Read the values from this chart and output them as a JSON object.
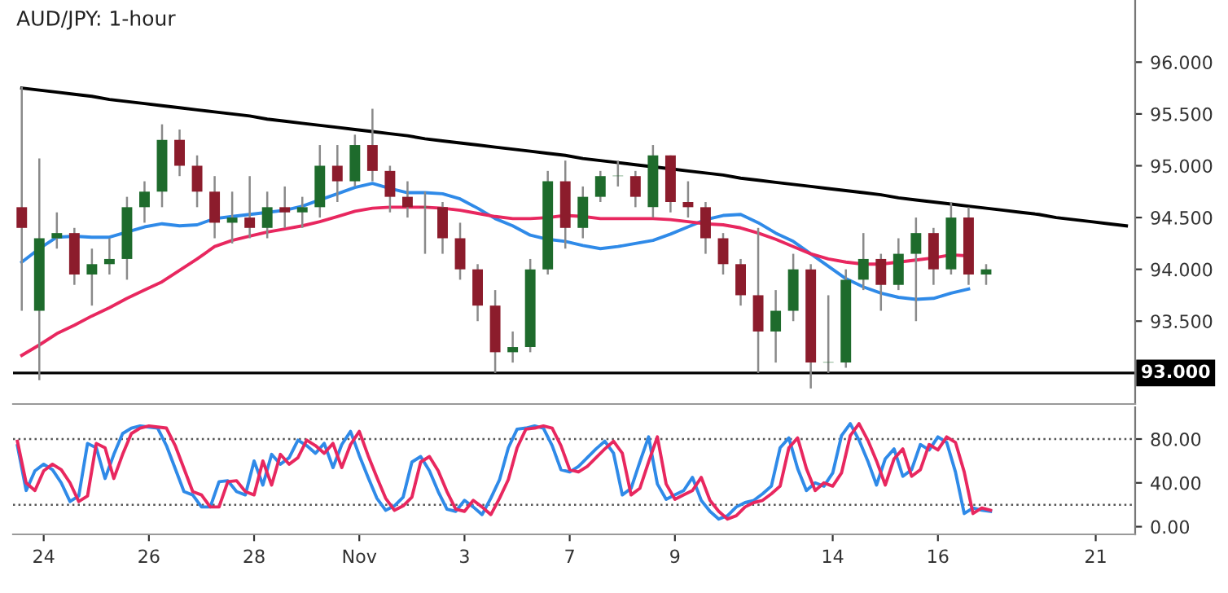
{
  "chart_data": [
    {
      "type": "candlestick",
      "title": "AUD/JPY: 1-hour",
      "tick_labels": "y",
      "categories": [
        null,
        null,
        null,
        null,
        null,
        null,
        null,
        null,
        null,
        null,
        null,
        null,
        null,
        null,
        null,
        null,
        null,
        null,
        null,
        null,
        null,
        null,
        null,
        null,
        null,
        null,
        null,
        null,
        null,
        null,
        null,
        null,
        null,
        null,
        null,
        null,
        null,
        null,
        null,
        null,
        null,
        null,
        null,
        null,
        null,
        null,
        null,
        null,
        null,
        null,
        null,
        null,
        null,
        null,
        null,
        null,
        null,
        null,
        null,
        null,
        null,
        null,
        null,
        null
      ],
      "ohlc": [
        [
          94.6,
          95.76,
          93.6,
          94.4
        ],
        [
          93.6,
          95.07,
          92.93,
          94.3
        ],
        [
          94.3,
          94.55,
          94.2,
          94.35
        ],
        [
          94.35,
          94.4,
          93.85,
          93.95
        ],
        [
          93.95,
          94.2,
          93.65,
          94.05
        ],
        [
          94.05,
          94.3,
          93.95,
          94.1
        ],
        [
          94.1,
          94.7,
          93.9,
          94.6
        ],
        [
          94.6,
          94.85,
          94.45,
          94.75
        ],
        [
          94.75,
          95.4,
          94.6,
          95.25
        ],
        [
          95.25,
          95.35,
          94.9,
          95.0
        ],
        [
          95.0,
          95.1,
          94.6,
          94.75
        ],
        [
          94.75,
          94.9,
          94.3,
          94.45
        ],
        [
          94.45,
          94.75,
          94.25,
          94.5
        ],
        [
          94.5,
          94.9,
          94.3,
          94.4
        ],
        [
          94.4,
          94.75,
          94.3,
          94.6
        ],
        [
          94.6,
          94.8,
          94.4,
          94.55
        ],
        [
          94.55,
          94.7,
          94.4,
          94.6
        ],
        [
          94.6,
          95.2,
          94.5,
          95.0
        ],
        [
          95.0,
          95.2,
          94.65,
          94.85
        ],
        [
          94.85,
          95.3,
          94.8,
          95.2
        ],
        [
          95.2,
          95.55,
          94.85,
          94.95
        ],
        [
          94.95,
          95.0,
          94.55,
          94.7
        ],
        [
          94.7,
          94.85,
          94.5,
          94.6
        ],
        [
          94.6,
          94.75,
          94.15,
          94.6
        ],
        [
          94.6,
          94.65,
          94.15,
          94.3
        ],
        [
          94.3,
          94.45,
          93.9,
          94.0
        ],
        [
          94.0,
          94.05,
          93.5,
          93.65
        ],
        [
          93.65,
          93.8,
          93.0,
          93.2
        ],
        [
          93.2,
          93.4,
          93.1,
          93.25
        ],
        [
          93.25,
          94.1,
          93.2,
          94.0
        ],
        [
          94.0,
          94.95,
          93.95,
          94.85
        ],
        [
          94.85,
          95.05,
          94.2,
          94.4
        ],
        [
          94.4,
          94.8,
          94.3,
          94.7
        ],
        [
          94.7,
          94.95,
          94.65,
          94.9
        ],
        [
          94.9,
          95.05,
          94.8,
          94.9
        ],
        [
          94.9,
          94.95,
          94.6,
          94.7
        ],
        [
          94.6,
          95.2,
          94.5,
          95.1
        ],
        [
          95.1,
          95.1,
          94.55,
          94.65
        ],
        [
          94.65,
          94.85,
          94.5,
          94.6
        ],
        [
          94.6,
          94.65,
          94.15,
          94.3
        ],
        [
          94.3,
          94.35,
          93.95,
          94.05
        ],
        [
          94.05,
          94.1,
          93.65,
          93.75
        ],
        [
          93.75,
          94.4,
          93.0,
          93.4
        ],
        [
          93.4,
          93.8,
          93.1,
          93.6
        ],
        [
          93.6,
          94.15,
          93.5,
          94.0
        ],
        [
          94.0,
          94.05,
          92.85,
          93.1
        ],
        [
          93.1,
          93.75,
          93.0,
          93.1
        ],
        [
          93.1,
          94.0,
          93.05,
          93.9
        ],
        [
          93.9,
          94.35,
          93.8,
          94.1
        ],
        [
          94.1,
          94.15,
          93.6,
          93.85
        ],
        [
          93.85,
          94.3,
          93.8,
          94.15
        ],
        [
          94.15,
          94.5,
          93.5,
          94.35
        ],
        [
          94.35,
          94.4,
          93.85,
          94.0
        ],
        [
          94.0,
          94.65,
          93.95,
          94.5
        ],
        [
          94.5,
          94.6,
          93.85,
          93.95
        ],
        [
          93.95,
          94.05,
          93.85,
          94.0
        ],
        null,
        null,
        null,
        null,
        null,
        null,
        null,
        null
      ],
      "series": [
        {
          "type": "line",
          "color": "#2f8ae8",
          "values": [
            94.07,
            94.2,
            94.31,
            94.32,
            94.31,
            94.31,
            94.36,
            94.41,
            94.44,
            94.42,
            94.43,
            94.49,
            94.51,
            94.53,
            94.55,
            94.57,
            94.61,
            94.67,
            94.73,
            94.79,
            94.83,
            94.78,
            94.74,
            94.74,
            94.73,
            94.68,
            94.59,
            94.49,
            94.42,
            94.33,
            94.29,
            94.27,
            94.23,
            94.2,
            94.22,
            94.25,
            94.28,
            94.34,
            94.41,
            94.48,
            94.52,
            94.53,
            94.45,
            94.35,
            94.27,
            94.15,
            94.03,
            93.91,
            93.83,
            93.77,
            93.73,
            93.71,
            93.72,
            93.77,
            93.81,
            null,
            null,
            null,
            null,
            null,
            null,
            null,
            null,
            null
          ]
        },
        {
          "type": "line",
          "color": "#e8275f",
          "values": [
            93.17,
            93.27,
            93.38,
            93.46,
            93.55,
            93.63,
            93.72,
            93.8,
            93.88,
            93.99,
            94.1,
            94.22,
            94.28,
            94.32,
            94.36,
            94.39,
            94.42,
            94.46,
            94.51,
            94.56,
            94.59,
            94.6,
            94.6,
            94.6,
            94.59,
            94.57,
            94.54,
            94.51,
            94.49,
            94.49,
            94.5,
            94.52,
            94.51,
            94.49,
            94.49,
            94.49,
            94.49,
            94.48,
            94.46,
            94.44,
            94.43,
            94.4,
            94.35,
            94.29,
            94.22,
            94.15,
            94.1,
            94.07,
            94.05,
            94.05,
            94.07,
            94.09,
            94.11,
            94.14,
            94.13,
            null,
            null,
            null,
            null,
            null,
            null,
            null,
            null,
            null
          ]
        },
        {
          "type": "line",
          "color": "#000000",
          "values": [
            95.75,
            95.73,
            95.71,
            95.69,
            95.67,
            95.64,
            95.62,
            95.6,
            95.58,
            95.56,
            95.54,
            95.52,
            95.5,
            95.48,
            95.45,
            95.43,
            95.41,
            95.39,
            95.37,
            95.35,
            95.33,
            95.31,
            95.29,
            95.26,
            95.24,
            95.22,
            95.2,
            95.18,
            95.16,
            95.14,
            95.12,
            95.1,
            95.07,
            95.05,
            95.03,
            95.01,
            94.99,
            94.97,
            94.95,
            94.93,
            94.91,
            94.88,
            94.86,
            94.84,
            94.82,
            94.8,
            94.78,
            94.76,
            94.74,
            94.72,
            94.69,
            94.67,
            94.65,
            94.63,
            94.61,
            94.59,
            94.57,
            94.55,
            94.53,
            94.5,
            94.48,
            94.46,
            94.44,
            94.42
          ]
        }
      ],
      "ylim": [
        92.7,
        96.6
      ],
      "yticks": [
        {
          "value": 93.5,
          "label": "93.500"
        },
        {
          "value": 94,
          "label": "94.000"
        },
        {
          "value": 94.5,
          "label": "94.500"
        },
        {
          "value": 95,
          "label": "95.000"
        },
        {
          "value": 95.5,
          "label": "95.500"
        },
        {
          "value": 96,
          "label": "96.000"
        }
      ],
      "ref_lines": [
        {
          "axis": "y",
          "value": 93,
          "label": "93.000",
          "color": "#000000",
          "line_style": "solid"
        }
      ]
    },
    {
      "type": "line",
      "line_style": "solid",
      "categories": [
        null,
        null,
        null,
        "24",
        null,
        null,
        null,
        null,
        null,
        null,
        null,
        null,
        null,
        null,
        null,
        "26",
        null,
        null,
        null,
        null,
        null,
        null,
        null,
        null,
        null,
        null,
        null,
        "28",
        null,
        null,
        null,
        null,
        null,
        null,
        null,
        null,
        null,
        null,
        null,
        "Nov",
        null,
        null,
        null,
        null,
        null,
        null,
        null,
        null,
        null,
        null,
        null,
        "3",
        null,
        null,
        null,
        null,
        null,
        null,
        null,
        null,
        null,
        null,
        null,
        "7",
        null,
        null,
        null,
        null,
        null,
        null,
        null,
        null,
        null,
        null,
        null,
        "9",
        null,
        null,
        null,
        null,
        null,
        null,
        null,
        null,
        null,
        null,
        null,
        null,
        null,
        null,
        null,
        null,
        null,
        "14",
        null,
        null,
        null,
        null,
        null,
        null,
        null,
        null,
        null,
        null,
        null,
        "16",
        null,
        null,
        null,
        null,
        null,
        null,
        null,
        null,
        null,
        null,
        null,
        null,
        null,
        null,
        null,
        null,
        null,
        "21",
        null,
        null,
        null,
        null
      ],
      "series": [
        {
          "color": "#2f8ae8",
          "values": [
            74,
            33,
            51,
            57,
            52,
            40,
            23,
            28,
            76,
            72,
            44,
            66,
            85,
            90,
            92,
            91,
            90,
            74,
            53,
            32,
            29,
            18,
            18,
            41,
            42,
            32,
            29,
            60,
            38,
            66,
            57,
            63,
            79,
            74,
            67,
            76,
            54,
            75,
            87,
            65,
            45,
            26,
            15,
            19,
            27,
            59,
            64,
            51,
            32,
            16,
            14,
            24,
            18,
            11,
            26,
            43,
            72,
            89,
            90,
            92,
            90,
            74,
            52,
            50,
            55,
            63,
            71,
            78,
            67,
            29,
            35,
            59,
            82,
            39,
            25,
            29,
            33,
            45,
            24,
            14,
            7,
            10,
            18,
            22,
            24,
            30,
            37,
            72,
            81,
            53,
            33,
            40,
            37,
            49,
            83,
            94,
            79,
            60,
            38,
            62,
            71,
            46,
            52,
            75,
            70,
            82,
            77,
            50,
            12,
            17,
            15,
            14,
            null,
            null,
            null,
            null,
            null,
            null,
            null,
            null,
            null,
            null,
            null,
            null,
            null,
            null,
            null,
            null
          ]
        },
        {
          "color": "#e8275f",
          "values": [
            78,
            40,
            33,
            51,
            57,
            52,
            40,
            23,
            28,
            76,
            72,
            44,
            66,
            85,
            90,
            92,
            91,
            90,
            74,
            53,
            32,
            29,
            18,
            18,
            41,
            42,
            32,
            29,
            60,
            38,
            66,
            57,
            63,
            79,
            74,
            67,
            76,
            54,
            75,
            87,
            65,
            45,
            26,
            15,
            19,
            27,
            59,
            64,
            51,
            32,
            16,
            14,
            24,
            18,
            11,
            26,
            43,
            72,
            89,
            90,
            92,
            90,
            74,
            52,
            50,
            55,
            63,
            71,
            78,
            67,
            29,
            35,
            59,
            82,
            39,
            25,
            29,
            33,
            45,
            24,
            14,
            7,
            10,
            18,
            22,
            24,
            30,
            37,
            72,
            81,
            53,
            33,
            40,
            37,
            49,
            83,
            94,
            79,
            60,
            38,
            62,
            71,
            46,
            52,
            75,
            70,
            82,
            77,
            50,
            12,
            17,
            15,
            null,
            null,
            null,
            null,
            null,
            null,
            null,
            null,
            null,
            null,
            null,
            null,
            null,
            null,
            null,
            null
          ]
        }
      ],
      "ylim": [
        -7,
        109
      ],
      "yticks": [
        {
          "value": 0,
          "label": "0.00"
        },
        {
          "value": 40,
          "label": "40.00"
        },
        {
          "value": 80,
          "label": "80.00"
        }
      ],
      "ref_lines": [
        {
          "axis": "y",
          "value": 80,
          "color": "#555555",
          "line_style": "dotted"
        },
        {
          "axis": "y",
          "value": 20,
          "color": "#555555",
          "line_style": "dotted"
        }
      ]
    }
  ]
}
